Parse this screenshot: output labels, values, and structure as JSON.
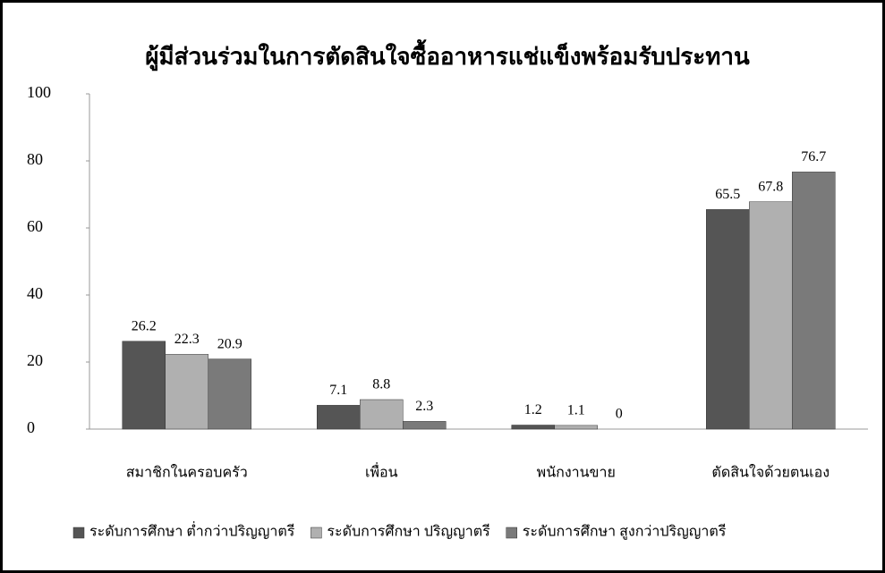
{
  "chart_data": {
    "type": "bar",
    "title": "ผู้มีส่วนร่วมในการตัดสินใจซื้ออาหารแช่แข็งพร้อมรับประทาน",
    "categories": [
      "สมาชิกในครอบครัว",
      "เพื่อน",
      "พนักงานขาย",
      "ตัดสินใจด้วยตนเอง"
    ],
    "series": [
      {
        "name": "ระดับการศึกษา ต่ำกว่าปริญญาตรี",
        "color": "#555555",
        "values": [
          26.2,
          7.1,
          1.2,
          65.5
        ]
      },
      {
        "name": "ระดับการศึกษา ปริญญาตรี",
        "color": "#b0b0b0",
        "values": [
          22.3,
          8.8,
          1.1,
          67.8
        ]
      },
      {
        "name": "ระดับการศึกษา สูงกว่าปริญญาตรี",
        "color": "#7a7a7a",
        "values": [
          20.9,
          2.3,
          0,
          76.7
        ]
      }
    ],
    "ylim": [
      0,
      100
    ],
    "yticks": [
      0,
      20,
      40,
      60,
      80,
      100
    ],
    "grid": false,
    "legend": "bottom"
  }
}
